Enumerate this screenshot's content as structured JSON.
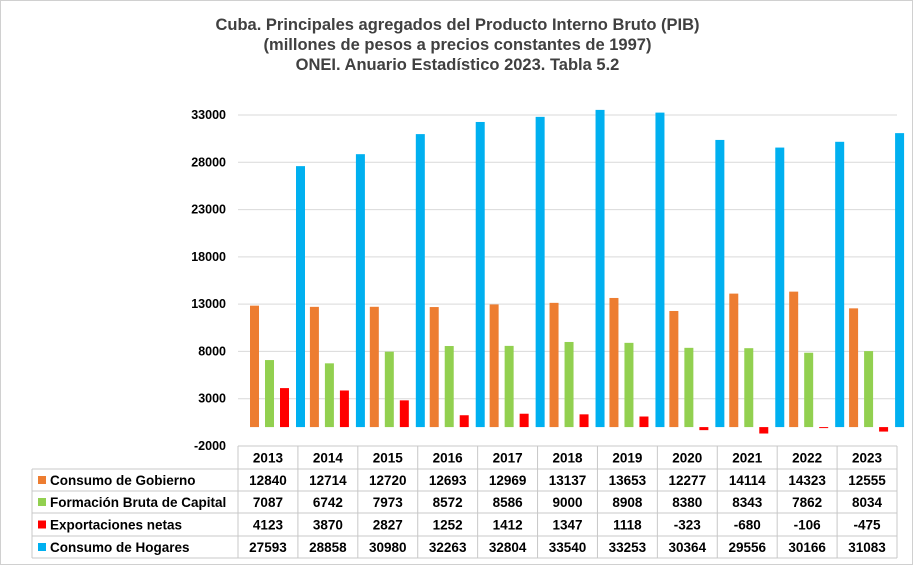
{
  "chart_data": {
    "type": "bar",
    "title_lines": [
      "Cuba. Principales agregados del Producto Interno Bruto (PIB)",
      "(millones de pesos a precios constantes de 1997)",
      "ONEI. Anuario Estadístico 2023. Tabla 5.2"
    ],
    "categories": [
      "2013",
      "2014",
      "2015",
      "2016",
      "2017",
      "2018",
      "2019",
      "2020",
      "2021",
      "2022",
      "2023"
    ],
    "ylim": [
      -2000,
      33000
    ],
    "yticks": [
      "33000",
      "28000",
      "23000",
      "18000",
      "13000",
      "8000",
      "3000",
      "-2000"
    ],
    "ytick_values": [
      33000,
      28000,
      23000,
      18000,
      13000,
      8000,
      3000,
      -2000
    ],
    "grid": true,
    "legend_position": "data-table",
    "series": [
      {
        "name": "Consumo de Gobierno",
        "color": "#ED7D31",
        "values": [
          12840,
          12714,
          12720,
          12693,
          12969,
          13137,
          13653,
          12277,
          14114,
          14323,
          12555
        ],
        "labels": [
          "12840",
          "12714",
          "12720",
          "12693",
          "12969",
          "13137",
          "13653",
          "12277",
          "14114",
          "14323",
          "12555"
        ]
      },
      {
        "name": "Formación Bruta de Capital",
        "color": "#92D050",
        "values": [
          7087,
          6742,
          7973,
          8572,
          8586,
          9000,
          8908,
          8380,
          8343,
          7862,
          8034
        ],
        "labels": [
          "7087",
          "6742",
          "7973",
          "8572",
          "8586",
          "9000",
          "8908",
          "8380",
          "8343",
          "7862",
          "8034"
        ]
      },
      {
        "name": "Exportaciones netas",
        "color": "#FF0000",
        "values": [
          4123,
          3870,
          2827,
          1252,
          1412,
          1347,
          1118,
          -323,
          -680,
          -106,
          -475
        ],
        "labels": [
          "4123",
          "3870",
          "2827",
          "1252",
          "1412",
          "1347",
          "1118",
          "-323",
          "-680",
          "-106",
          "-475"
        ]
      },
      {
        "name": "Consumo de Hogares",
        "color": "#00B0F0",
        "values": [
          27593,
          28858,
          30980,
          32263,
          32804,
          33540,
          33253,
          30364,
          29556,
          30166,
          31083
        ],
        "labels": [
          "27593",
          "28858",
          "30980",
          "32263",
          "32804",
          "33540",
          "33253",
          "30364",
          "29556",
          "30166",
          "31083"
        ]
      }
    ]
  }
}
